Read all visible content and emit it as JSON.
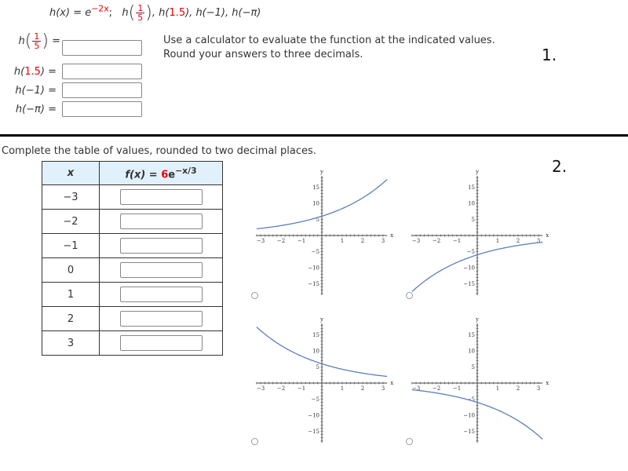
{
  "problem1": {
    "function": {
      "name": "h",
      "var": "x",
      "lhs": "h(x) = e",
      "exponent": "−2x",
      "sep": ";"
    },
    "points_label": {
      "h": "h",
      "frac_num": "1",
      "frac_den": "5",
      "rest_a": ", h(",
      "v1": "1.5",
      "rest_b": "), h(−1), h(−π)"
    },
    "instructions": [
      "Use a calculator to evaluate the function at the indicated values.",
      "Round your answers to three decimals."
    ],
    "number": "1.",
    "fields": [
      {
        "label_h": "h",
        "frac_num": "1",
        "frac_den": "5",
        "eq": "=",
        "value": ""
      },
      {
        "label_pre": "h(",
        "label_red": "1.5",
        "label_post": ")",
        "eq": "=",
        "value": ""
      },
      {
        "label": "h(−1)",
        "eq": "=",
        "value": ""
      },
      {
        "label": "h(−π)",
        "eq": "=",
        "value": ""
      }
    ]
  },
  "problem2": {
    "instruction": "Complete the table of values, rounded to two decimal places.",
    "number": "2.",
    "table": {
      "col_x": "x",
      "col_f_pre": "f(x) = ",
      "col_f_coef": "6",
      "col_f_post": "e",
      "col_f_exp": "−x/3",
      "rows": [
        {
          "x": "−3",
          "value": ""
        },
        {
          "x": "−2",
          "value": ""
        },
        {
          "x": "−1",
          "value": ""
        },
        {
          "x": "0",
          "value": ""
        },
        {
          "x": "1",
          "value": ""
        },
        {
          "x": "2",
          "value": ""
        },
        {
          "x": "3",
          "value": ""
        }
      ]
    },
    "graph_options": [
      {
        "formula": {
          "a": 6,
          "k": 0.3333
        },
        "selected": false
      },
      {
        "formula": {
          "a": -6,
          "k": -0.3333
        },
        "selected": false
      },
      {
        "formula": {
          "a": 6,
          "k": -0.3333
        },
        "selected": false
      },
      {
        "formula": {
          "a": -6,
          "k": 0.3333
        },
        "selected": false
      }
    ],
    "graph_axes": {
      "xlabel": "x",
      "ylabel": "y",
      "xticks": [
        "−3",
        "−2",
        "−1",
        "1",
        "2",
        "3"
      ],
      "xtick_values": [
        -3,
        -2,
        -1,
        1,
        2,
        3
      ],
      "yticks": [
        "15",
        "10",
        "5",
        "−5",
        "−10",
        "−15"
      ],
      "ytick_values": [
        15,
        10,
        5,
        -5,
        -10,
        -15
      ],
      "xlim": [
        -3.2,
        3.2
      ],
      "ylim": [
        -18.5,
        18.5
      ]
    },
    "curve_color": "#5b7fbf"
  }
}
